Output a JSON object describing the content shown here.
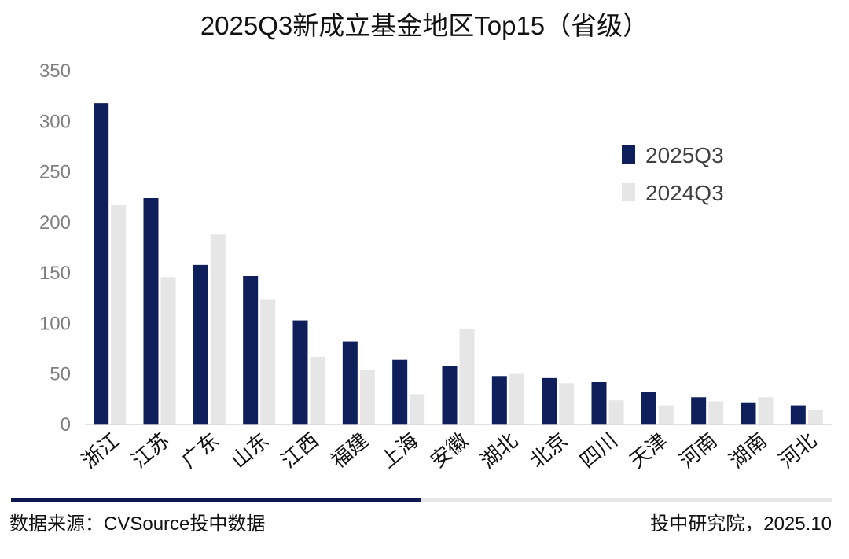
{
  "chart_data": {
    "type": "bar",
    "title": "2025Q3新成立基金地区Top15（省级）",
    "categories": [
      "浙江",
      "江苏",
      "广东",
      "山东",
      "江西",
      "福建",
      "上海",
      "安徽",
      "湖北",
      "北京",
      "四川",
      "天津",
      "河南",
      "湖南",
      "河北"
    ],
    "series": [
      {
        "name": "2025Q3",
        "color": "#0e1f5b",
        "values": [
          318,
          224,
          158,
          147,
          103,
          82,
          64,
          58,
          48,
          46,
          42,
          32,
          27,
          22,
          19
        ]
      },
      {
        "name": "2024Q3",
        "color": "#e6e6e6",
        "values": [
          217,
          146,
          188,
          124,
          67,
          54,
          30,
          95,
          50,
          41,
          24,
          19,
          23,
          27,
          14
        ]
      }
    ],
    "ylim": [
      0,
      350
    ],
    "yticks": [
      0,
      50,
      100,
      150,
      200,
      250,
      300,
      350
    ],
    "xlabel": "",
    "ylabel": "",
    "grid": false,
    "legend_position": "top-right"
  },
  "footer": {
    "source": "数据来源：CVSource投中数据",
    "credit": "投中研究院，2025.10"
  },
  "colors": {
    "accent_dark": "#0e1a4f",
    "accent_light": "#e6e6e6"
  }
}
